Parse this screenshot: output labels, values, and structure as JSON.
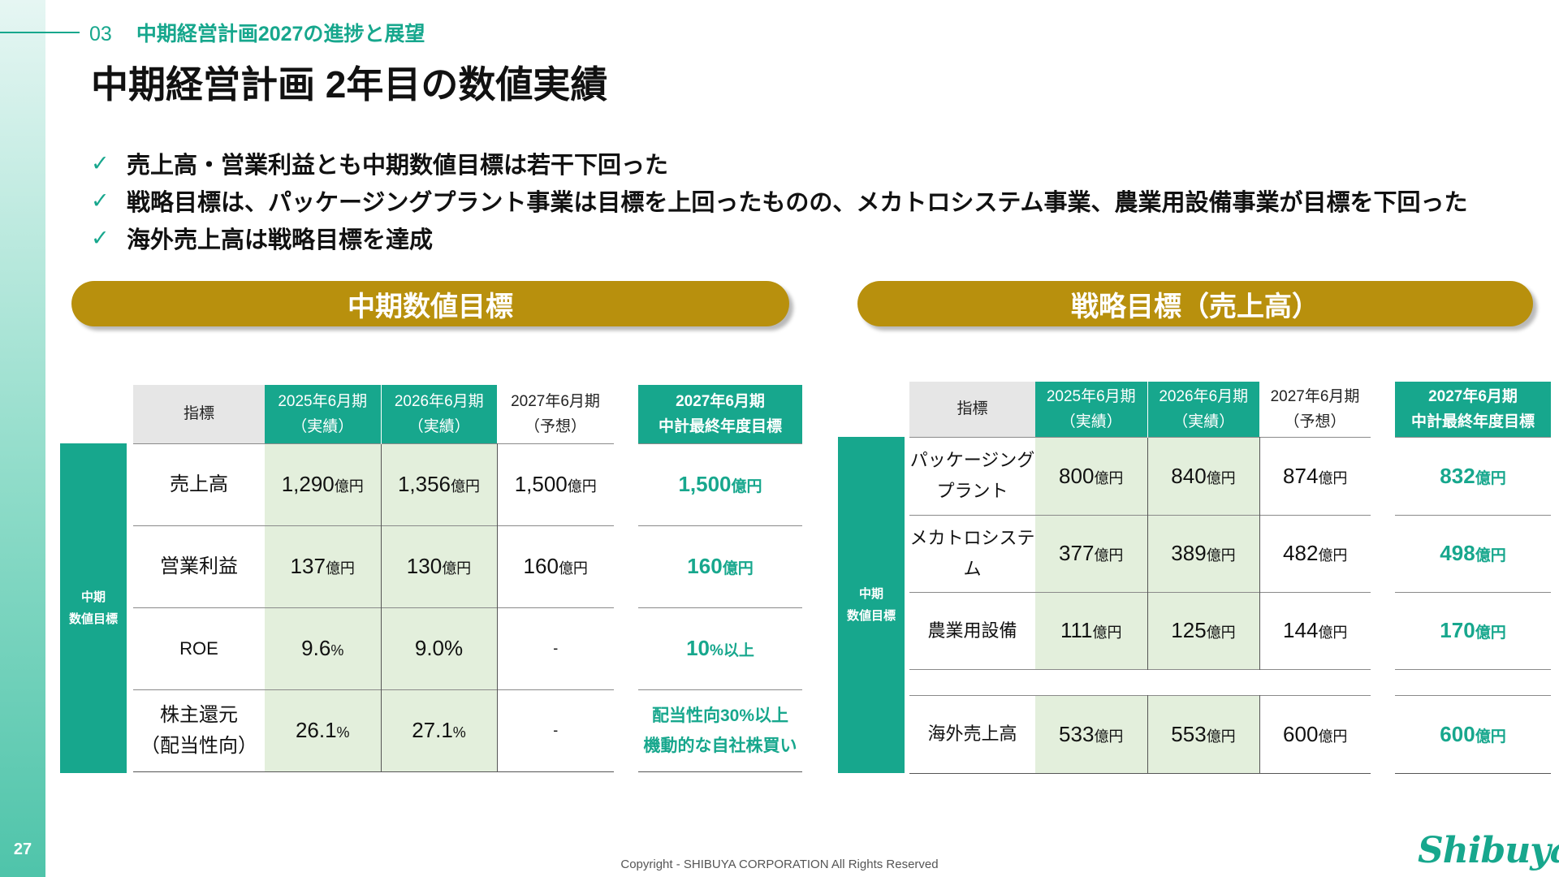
{
  "section": {
    "number": "03",
    "title": "中期経営計画2027の進捗と展望"
  },
  "page_title": "中期経営計画 2年目の数値実績",
  "bullets": [
    "売上高・営業利益とも中期数値目標は若干下回った",
    "戦略目標は、パッケージングプラント事業は目標を上回ったものの、メカトロシステム事業、農業用設備事業が目標を下回った",
    "海外売上高は戦略目標を達成"
  ],
  "check_glyph": "✓",
  "left_panel": {
    "header": "中期数値目標",
    "side_label_1": "中期",
    "side_label_2": "数値目標",
    "columns": {
      "metric": "指標",
      "fy2025_1": "2025年6月期",
      "fy2025_2": "（実績）",
      "fy2026_1": "2026年6月期",
      "fy2026_2": "（実績）",
      "fy2027_1": "2027年6月期",
      "fy2027_2": "（予想）",
      "target_1": "2027年6月期",
      "target_2": "中計最終年度目標"
    },
    "rows": [
      {
        "m1": "売上高",
        "m2": "",
        "v1": "1,290",
        "u1": "億円",
        "v2": "1,356",
        "u2": "億円",
        "v3": "1,500",
        "u3": "億円",
        "t1": "1,500",
        "tu": "億円",
        "t2": ""
      },
      {
        "m1": "営業利益",
        "m2": "",
        "v1": "137",
        "u1": "億円",
        "v2": "130",
        "u2": "億円",
        "v3": "160",
        "u3": "億円",
        "t1": "160",
        "tu": "億円",
        "t2": ""
      },
      {
        "m1": "ROE",
        "m2": "",
        "v1": "9.6",
        "u1": "%",
        "v2": "9.0%",
        "u2": "",
        "v3": "-",
        "u3": "",
        "t1": "10",
        "tu": "%以上",
        "t2": ""
      },
      {
        "m1": "株主還元",
        "m2": "（配当性向）",
        "v1": "26.1",
        "u1": "%",
        "v2": "27.1",
        "u2": "%",
        "v3": "-",
        "u3": "",
        "t1": "配当性向30%以上",
        "tu": "",
        "t2": "機動的な自社株買い"
      }
    ]
  },
  "right_panel": {
    "header": "戦略目標（売上高）",
    "side_label_1": "中期",
    "side_label_2": "数値目標",
    "columns": {
      "metric": "指標",
      "fy2025_1": "2025年6月期",
      "fy2025_2": "（実績）",
      "fy2026_1": "2026年6月期",
      "fy2026_2": "（実績）",
      "fy2027_1": "2027年6月期",
      "fy2027_2": "（予想）",
      "target_1": "2027年6月期",
      "target_2": "中計最終年度目標"
    },
    "rows": [
      {
        "m1": "パッケージング",
        "m2": "プラント",
        "v1": "800",
        "v2": "840",
        "v3": "874",
        "t": "832",
        "unit": "億円"
      },
      {
        "m1": "メカトロシステム",
        "m2": "",
        "v1": "377",
        "v2": "389",
        "v3": "482",
        "t": "498",
        "unit": "億円"
      },
      {
        "m1": "農業用設備",
        "m2": "",
        "v1": "111",
        "v2": "125",
        "v3": "144",
        "t": "170",
        "unit": "億円"
      },
      {
        "m1": "海外売上高",
        "m2": "",
        "v1": "533",
        "v2": "553",
        "v3": "600",
        "t": "600",
        "unit": "億円"
      }
    ]
  },
  "footer": {
    "copyright": "Copyright - SHIBUYA CORPORATION  All Rights Reserved",
    "logo": "Shibuya",
    "page_number": "27"
  },
  "colors": {
    "accent": "#17a78d",
    "gold": "#b8900d",
    "actual_fill": "#e3efdc",
    "label_fill": "#e6e6e6"
  }
}
